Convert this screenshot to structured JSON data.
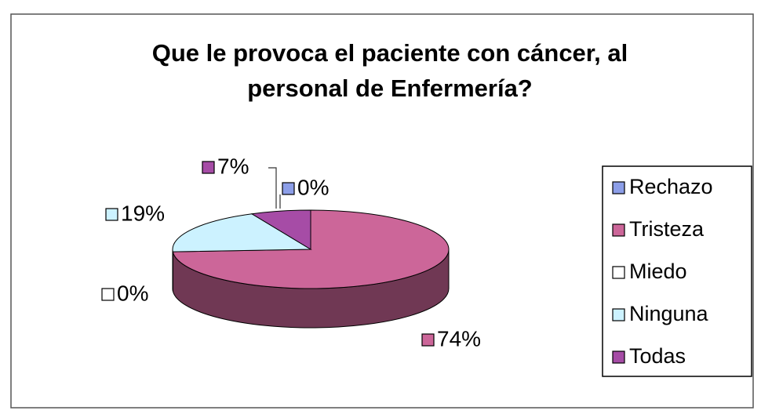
{
  "chart_data": {
    "type": "pie3d",
    "title": "Que le provoca el paciente con cáncer, al",
    "title_line2": "personal de Enfermería?",
    "categories": [
      "Rechazo",
      "Tristeza",
      "Miedo",
      "Ninguna",
      "Todas"
    ],
    "values": [
      0,
      74,
      0,
      19,
      7
    ],
    "value_labels": [
      "0%",
      "74%",
      "0%",
      "19%",
      "7%"
    ],
    "colors": [
      "#8c9ee8",
      "#cc6699",
      "#ffffff",
      "#ccf2ff",
      "#a64ca6"
    ],
    "legend": "right"
  }
}
